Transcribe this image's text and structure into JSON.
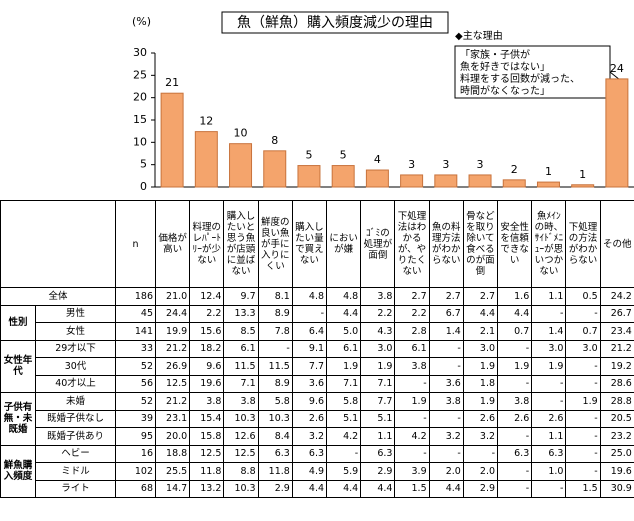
{
  "chart_data": {
    "type": "bar",
    "title": "魚（鮮魚）購入頻度減少の理由",
    "y_label": "(%)",
    "values": [
      21.0,
      12.4,
      9.7,
      8.1,
      4.8,
      4.8,
      3.8,
      2.7,
      2.7,
      2.7,
      1.6,
      1.1,
      0.5,
      24.2
    ],
    "value_labels": [
      "21",
      "12",
      "10",
      "8",
      "5",
      "5",
      "4",
      "3",
      "3",
      "3",
      "2",
      "1",
      "1",
      "24"
    ],
    "color": "#f4a46c",
    "ylim": [
      0,
      30
    ],
    "yticks": [
      0,
      5,
      10,
      15,
      20,
      25,
      30
    ],
    "grid": false,
    "legend": "◆主な理由",
    "annotation": [
      "「家族・子供が",
      "魚を好きではない」",
      "料理をする回数が減った、",
      "時間がなくなった」"
    ]
  },
  "table": {
    "n_header": "n",
    "columns": [
      "価格が高い",
      "料理のレﾊﾟｰﾄﾘｰが少ない",
      "購入したいと思う魚が店頭に並ばない",
      "鮮度の良い魚が手に入りにくい",
      "購入したい量で買えない",
      "においが嫌",
      "ｺﾞﾐの処理が面倒",
      "下処理法はわかるが、やりたくない",
      "魚の料理方法がわからない",
      "骨などを取り除いて食べるのが面倒",
      "安全性を信頼できない",
      "魚ﾒｲﾝの時、ｻｲﾄﾞﾒﾆｭｰが思いつかない",
      "下処理の方法がわからない",
      "その他"
    ],
    "total": {
      "label": "全体",
      "n": "186",
      "values": [
        "21.0",
        "12.4",
        "9.7",
        "8.1",
        "4.8",
        "4.8",
        "3.8",
        "2.7",
        "2.7",
        "2.7",
        "1.6",
        "1.1",
        "0.5",
        "24.2"
      ]
    },
    "sections": [
      {
        "group": "性別",
        "rows": [
          {
            "label": "男性",
            "n": "45",
            "values": [
              "24.4",
              "2.2",
              "13.3",
              "8.9",
              "-",
              "4.4",
              "2.2",
              "2.2",
              "6.7",
              "4.4",
              "4.4",
              "-",
              "-",
              "26.7"
            ]
          },
          {
            "label": "女性",
            "n": "141",
            "values": [
              "19.9",
              "15.6",
              "8.5",
              "7.8",
              "6.4",
              "5.0",
              "4.3",
              "2.8",
              "1.4",
              "2.1",
              "0.7",
              "1.4",
              "0.7",
              "23.4"
            ]
          }
        ]
      },
      {
        "group": "女性年代",
        "rows": [
          {
            "label": "29才以下",
            "n": "33",
            "values": [
              "21.2",
              "18.2",
              "6.1",
              "-",
              "9.1",
              "6.1",
              "3.0",
              "6.1",
              "-",
              "3.0",
              "-",
              "3.0",
              "3.0",
              "21.2"
            ]
          },
          {
            "label": "30代",
            "n": "52",
            "values": [
              "26.9",
              "9.6",
              "11.5",
              "11.5",
              "7.7",
              "1.9",
              "1.9",
              "3.8",
              "-",
              "1.9",
              "1.9",
              "1.9",
              "-",
              "19.2"
            ]
          },
          {
            "label": "40才以上",
            "n": "56",
            "values": [
              "12.5",
              "19.6",
              "7.1",
              "8.9",
              "3.6",
              "7.1",
              "7.1",
              "-",
              "3.6",
              "1.8",
              "-",
              "-",
              "-",
              "28.6"
            ]
          }
        ]
      },
      {
        "group": "子供有無・未既婚",
        "rows": [
          {
            "label": "未婚",
            "n": "52",
            "values": [
              "21.2",
              "3.8",
              "3.8",
              "5.8",
              "9.6",
              "5.8",
              "7.7",
              "1.9",
              "3.8",
              "1.9",
              "3.8",
              "-",
              "1.9",
              "28.8"
            ]
          },
          {
            "label": "既婚子供なし",
            "n": "39",
            "values": [
              "23.1",
              "15.4",
              "10.3",
              "10.3",
              "2.6",
              "5.1",
              "5.1",
              "-",
              "-",
              "2.6",
              "2.6",
              "2.6",
              "-",
              "20.5"
            ]
          },
          {
            "label": "既婚子供あり",
            "n": "95",
            "values": [
              "20.0",
              "15.8",
              "12.6",
              "8.4",
              "3.2",
              "4.2",
              "1.1",
              "4.2",
              "3.2",
              "3.2",
              "-",
              "1.1",
              "-",
              "23.2"
            ]
          }
        ]
      },
      {
        "group": "鮮魚購入頻度",
        "rows": [
          {
            "label": "ヘビー",
            "n": "16",
            "values": [
              "18.8",
              "12.5",
              "12.5",
              "6.3",
              "6.3",
              "-",
              "6.3",
              "-",
              "-",
              "-",
              "6.3",
              "6.3",
              "-",
              "25.0"
            ]
          },
          {
            "label": "ミドル",
            "n": "102",
            "values": [
              "25.5",
              "11.8",
              "8.8",
              "11.8",
              "4.9",
              "5.9",
              "2.9",
              "3.9",
              "2.0",
              "2.0",
              "-",
              "1.0",
              "-",
              "19.6"
            ]
          },
          {
            "label": "ライト",
            "n": "68",
            "values": [
              "14.7",
              "13.2",
              "10.3",
              "2.9",
              "4.4",
              "4.4",
              "4.4",
              "1.5",
              "4.4",
              "2.9",
              "-",
              "-",
              "1.5",
              "30.9"
            ]
          }
        ]
      }
    ]
  }
}
